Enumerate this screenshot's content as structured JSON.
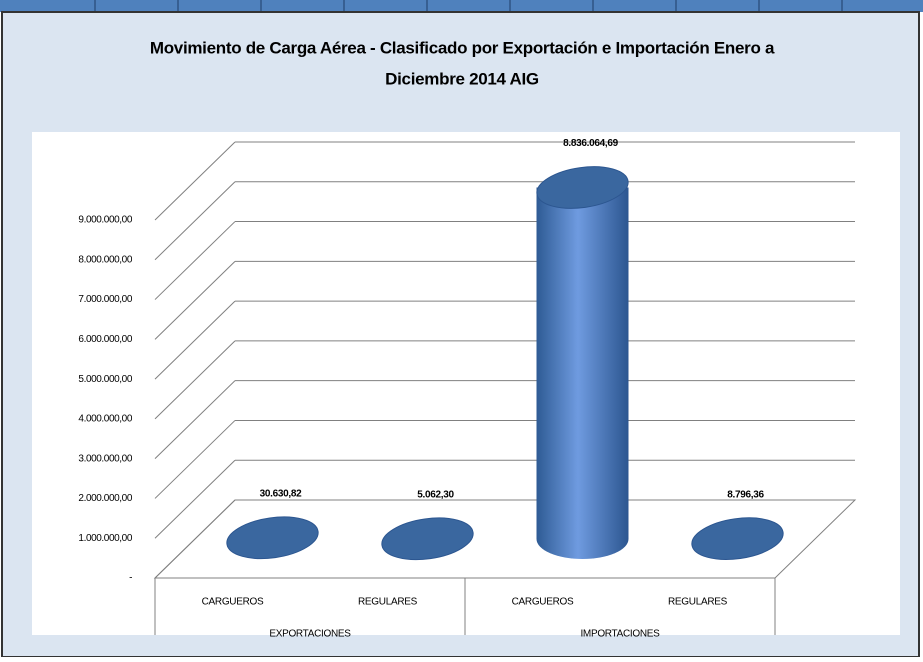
{
  "chart_data": {
    "type": "cylinder3d",
    "title": "Movimiento de Carga Aérea - Clasificado por Exportación e Importación Enero a",
    "subtitle": "Diciembre 2014 AIG",
    "groups": [
      "EXPORTACIONES",
      "IMPORTACIONES"
    ],
    "categories": [
      "CARGUEROS",
      "REGULARES",
      "CARGUEROS",
      "REGULARES"
    ],
    "values": [
      30630.82,
      5062.3,
      8836064.69,
      8796.36
    ],
    "value_labels": [
      "30.630,82",
      "5.062,30",
      "8.836.064,69",
      "8.796,36"
    ],
    "color": "#4a7ebb",
    "ylim": [
      0,
      9000000
    ],
    "yticks": [
      {
        "value": 0,
        "label": "-"
      },
      {
        "value": 1000000,
        "label": "1.000.000,00"
      },
      {
        "value": 2000000,
        "label": "2.000.000,00"
      },
      {
        "value": 3000000,
        "label": "3.000.000,00"
      },
      {
        "value": 4000000,
        "label": "4.000.000,00"
      },
      {
        "value": 5000000,
        "label": "5.000.000,00"
      },
      {
        "value": 6000000,
        "label": "6.000.000,00"
      },
      {
        "value": 7000000,
        "label": "7.000.000,00"
      },
      {
        "value": 8000000,
        "label": "8.000.000,00"
      },
      {
        "value": 9000000,
        "label": "9.000.000,00"
      }
    ],
    "grid": true
  }
}
